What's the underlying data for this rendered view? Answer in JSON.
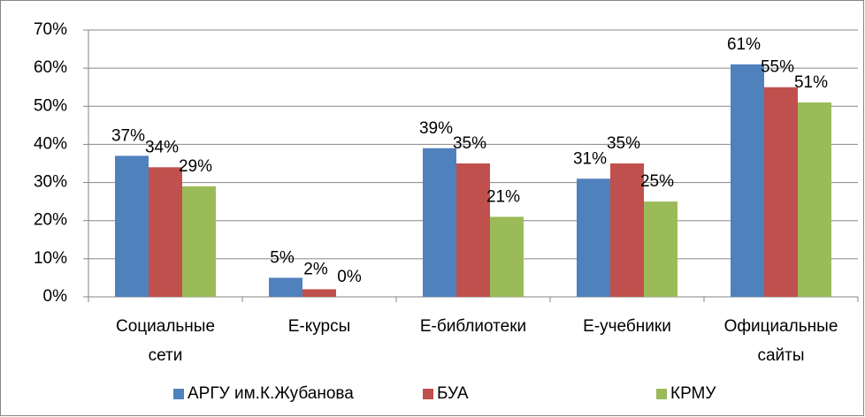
{
  "chart_data": {
    "type": "bar",
    "categories": [
      "Социальные сети",
      "Е-курсы",
      "Е-библиотеки",
      "Е-учебники",
      "Официальные сайты"
    ],
    "series": [
      {
        "name": "АРГУ им.К.Жубанова",
        "color": "#4f81bd",
        "values": [
          37,
          5,
          39,
          31,
          61
        ],
        "value_labels": [
          "37%",
          "5%",
          "39%",
          "31%",
          "61%"
        ]
      },
      {
        "name": "БУА",
        "color": "#c0504d",
        "values": [
          34,
          2,
          35,
          35,
          55
        ],
        "value_labels": [
          "34%",
          "2%",
          "35%",
          "35%",
          "55%"
        ]
      },
      {
        "name": "КРМУ",
        "color": "#9bbb59",
        "values": [
          29,
          0,
          21,
          25,
          51
        ],
        "value_labels": [
          "29%",
          "0%",
          "21%",
          "25%",
          "51%"
        ]
      }
    ],
    "ylim": [
      0,
      70
    ],
    "yticks": [
      {
        "value": 0,
        "label": "0%"
      },
      {
        "value": 10,
        "label": "10%"
      },
      {
        "value": 20,
        "label": "20%"
      },
      {
        "value": 30,
        "label": "30%"
      },
      {
        "value": 40,
        "label": "40%"
      },
      {
        "value": 50,
        "label": "50%"
      },
      {
        "value": 60,
        "label": "60%"
      },
      {
        "value": 70,
        "label": "70%"
      }
    ],
    "grid": true,
    "legend": "bottom"
  }
}
